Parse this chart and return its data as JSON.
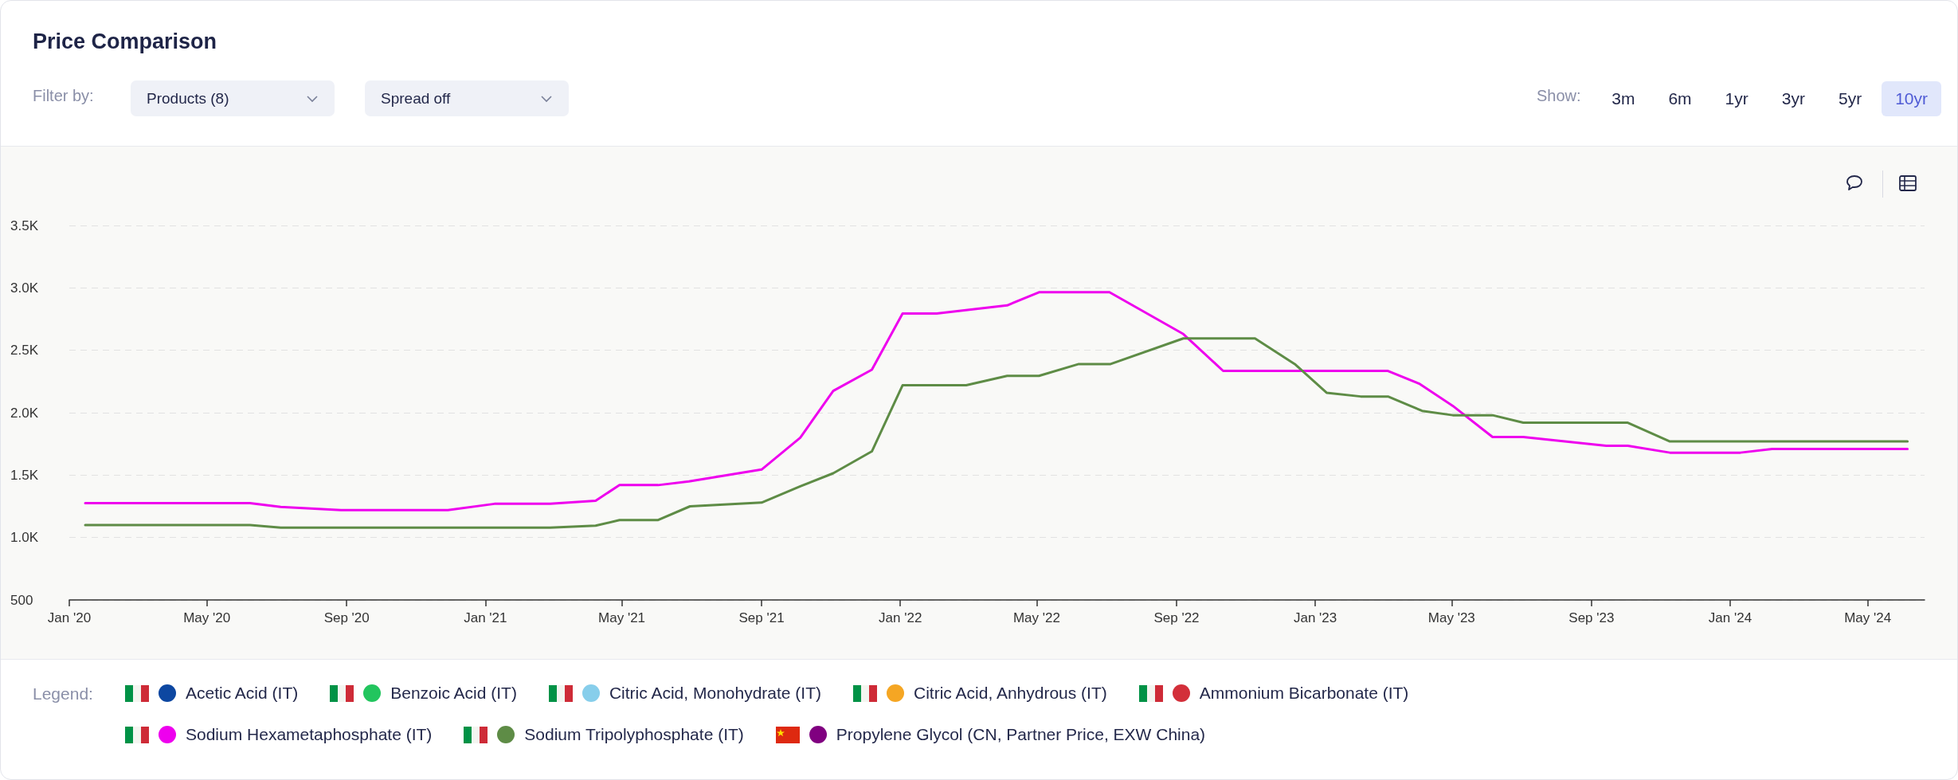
{
  "chart_data": {
    "type": "line",
    "title": "Price Comparison",
    "legend_title": "Legend:",
    "legend": "bottom",
    "grid": "y",
    "line_style": "solid",
    "marker": "none",
    "annotations": [
      "Filter by:",
      "Products (8)",
      "Spread off",
      "Show:",
      "3m",
      "6m",
      "1yr",
      "3yr",
      "5yr",
      "10yr"
    ],
    "xlim": [
      "2020-01-01",
      "2024-06-20"
    ],
    "xticks": [
      {
        "value": "2020-01-01",
        "label": "Jan '20"
      },
      {
        "value": "2020-05-01",
        "label": "May '20"
      },
      {
        "value": "2020-09-01",
        "label": "Sep '20"
      },
      {
        "value": "2021-01-01",
        "label": "Jan '21"
      },
      {
        "value": "2021-05-01",
        "label": "May '21"
      },
      {
        "value": "2021-09-01",
        "label": "Sep '21"
      },
      {
        "value": "2022-01-01",
        "label": "Jan '22"
      },
      {
        "value": "2022-05-01",
        "label": "May '22"
      },
      {
        "value": "2022-09-01",
        "label": "Sep '22"
      },
      {
        "value": "2023-01-01",
        "label": "Jan '23"
      },
      {
        "value": "2023-05-01",
        "label": "May '23"
      },
      {
        "value": "2023-09-01",
        "label": "Sep '23"
      },
      {
        "value": "2024-01-01",
        "label": "Jan '24"
      },
      {
        "value": "2024-05-01",
        "label": "May '24"
      }
    ],
    "ylim": [
      500,
      3500
    ],
    "yticks": [
      500,
      {
        "value": 1000,
        "label": "1.0K"
      },
      {
        "value": 1500,
        "label": "1.5K"
      },
      {
        "value": 2000,
        "label": "2.0K"
      },
      {
        "value": 2500,
        "label": "2.5K"
      },
      {
        "value": 3000,
        "label": "3.0K"
      },
      {
        "value": 3500,
        "label": "3.5K"
      }
    ],
    "series": [
      {
        "name": "Acetic Acid (IT)",
        "color": "#0d47a1"
      },
      {
        "name": "Benzoic Acid (IT)",
        "color": "#22c55e"
      },
      {
        "name": "Citric Acid, Monohydrate (IT)",
        "color": "#87ceeb"
      },
      {
        "name": "Citric Acid, Anhydrous (IT)",
        "color": "#f5a623"
      },
      {
        "name": "Ammonium Bicarbonate (IT)",
        "color": "#d32f3a"
      },
      {
        "name": "Sodium Hexametaphosphate (IT)",
        "color": "#ee00ee",
        "x": [
          "2020-01-15",
          "2020-06-08",
          "2020-07-05",
          "2020-08-27",
          "2020-11-29",
          "2021-01-09",
          "2021-02-27",
          "2021-04-08",
          "2021-04-29",
          "2021-06-02",
          "2021-06-29",
          "2021-09-01",
          "2021-10-05",
          "2021-11-03",
          "2021-12-07",
          "2022-01-03",
          "2022-02-02",
          "2022-04-05",
          "2022-05-03",
          "2022-07-04",
          "2022-09-07",
          "2022-10-12",
          "2023-03-06",
          "2023-04-03",
          "2023-05-02",
          "2023-06-06",
          "2023-07-03",
          "2023-09-14",
          "2023-10-03",
          "2023-11-09",
          "2024-01-10",
          "2024-02-07",
          "2024-06-05"
        ],
        "values": [
          1275,
          1275,
          1245,
          1220,
          1220,
          1270,
          1270,
          1295,
          1420,
          1420,
          1450,
          1545,
          1800,
          2175,
          2345,
          2795,
          2795,
          2860,
          2965,
          2965,
          2630,
          2335,
          2335,
          2230,
          2055,
          1805,
          1805,
          1735,
          1735,
          1680,
          1680,
          1710,
          1710
        ]
      },
      {
        "name": "Sodium Tripolyphosphate (IT)",
        "color": "#5e8c46",
        "x": [
          "2020-01-15",
          "2020-06-08",
          "2020-07-05",
          "2021-02-27",
          "2021-04-08",
          "2021-04-29",
          "2021-06-02",
          "2021-06-30",
          "2021-09-01",
          "2021-10-05",
          "2021-11-03",
          "2021-12-07",
          "2022-01-03",
          "2022-02-28",
          "2022-04-05",
          "2022-05-03",
          "2022-06-07",
          "2022-07-05",
          "2022-09-07",
          "2022-11-09",
          "2022-12-14",
          "2023-01-11",
          "2023-02-10",
          "2023-03-06",
          "2023-04-05",
          "2023-05-02",
          "2023-06-06",
          "2023-07-03",
          "2023-10-03",
          "2023-11-09",
          "2024-06-05"
        ],
        "values": [
          1100,
          1100,
          1080,
          1080,
          1095,
          1140,
          1140,
          1250,
          1280,
          1410,
          1515,
          1690,
          2220,
          2220,
          2295,
          2295,
          2390,
          2390,
          2595,
          2595,
          2390,
          2160,
          2130,
          2130,
          2015,
          1980,
          1980,
          1920,
          1920,
          1770,
          1770
        ]
      },
      {
        "name": "Propylene Glycol (CN, Partner Price, EXW China)",
        "color": "#800080"
      }
    ]
  }
}
